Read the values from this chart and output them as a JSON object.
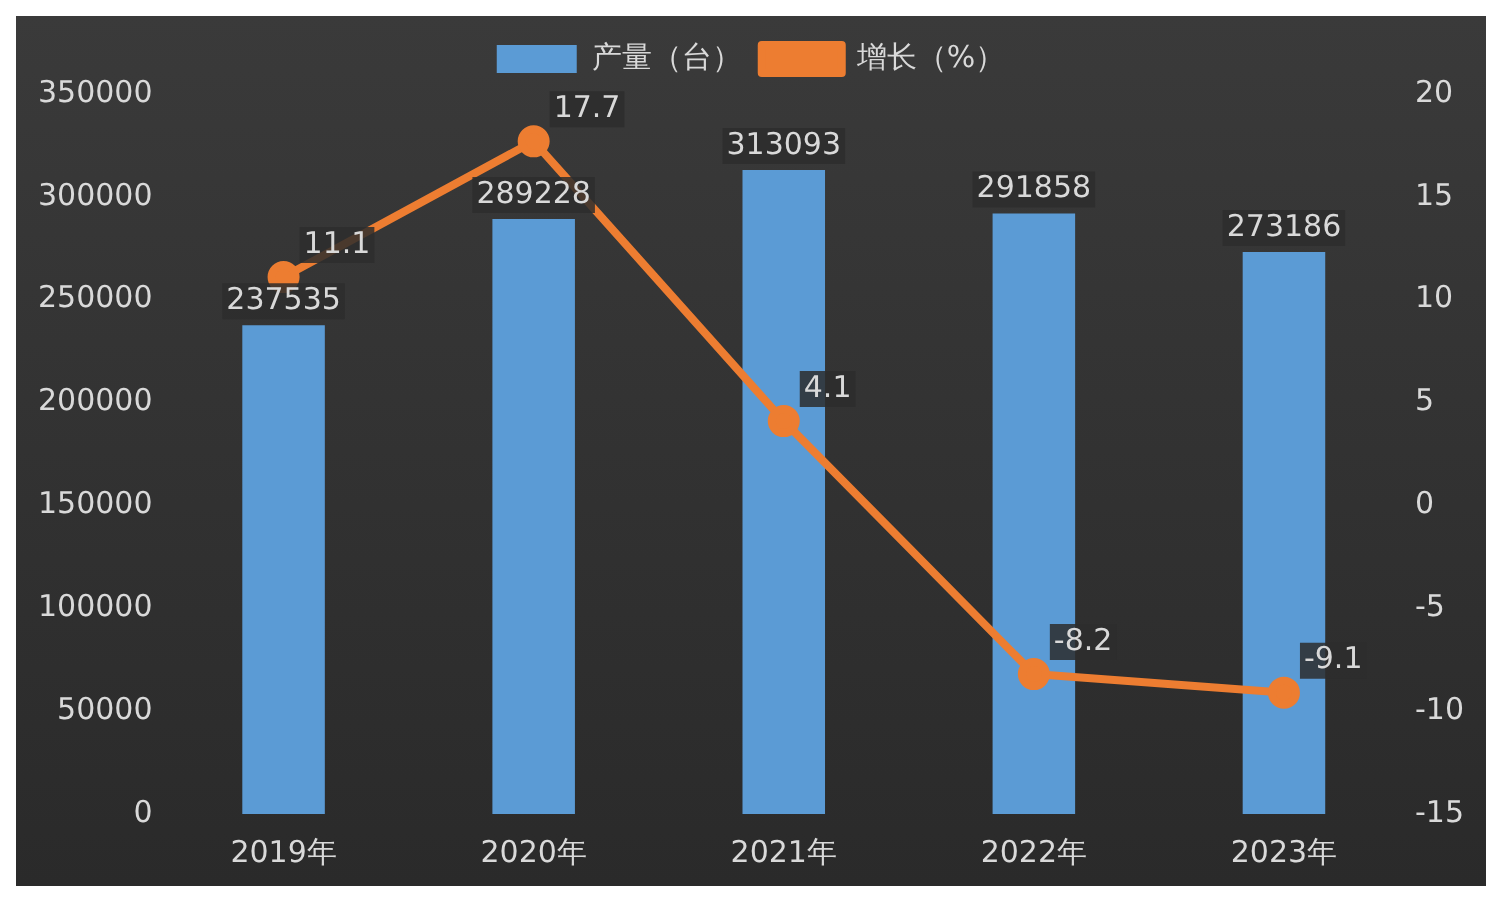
{
  "chart_data": {
    "type": "bar",
    "categories": [
      "2019年",
      "2020年",
      "2021年",
      "2022年",
      "2023年"
    ],
    "series": [
      {
        "name": "产量（台）",
        "color": "#5b9bd5",
        "values": [
          237535,
          289228,
          313093,
          291858,
          273186
        ]
      },
      {
        "name": "增长（%）",
        "type": "line",
        "axis": "y2",
        "color": "#ed7d31",
        "values": [
          11.1,
          17.7,
          4.1,
          -8.2,
          -9.1
        ]
      }
    ],
    "ylim": [
      0,
      350000
    ],
    "yticks": [
      0,
      50000,
      100000,
      150000,
      200000,
      250000,
      300000,
      350000
    ],
    "y2lim": [
      -15,
      20
    ],
    "y2ticks": [
      -15,
      -10,
      -5,
      0,
      5,
      10,
      15,
      20
    ],
    "data_labels": true,
    "legend": "top",
    "grid": false,
    "marker": "circle",
    "line_style": "solid"
  }
}
